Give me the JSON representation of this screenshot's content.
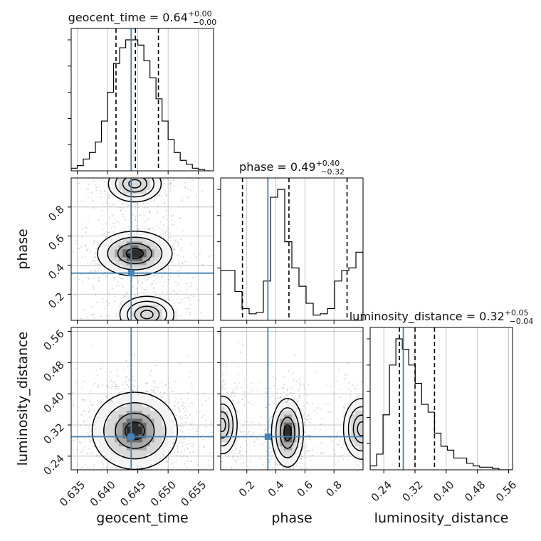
{
  "chart_data": {
    "type": "corner",
    "parameters": [
      "geocent_time",
      "phase",
      "luminosity_distance"
    ],
    "axis_labels": {
      "geocent_time": "geocent_time",
      "phase": "phase",
      "luminosity_distance": "luminosity_distance"
    },
    "ranges": {
      "geocent_time": [
        0.634,
        0.6575
      ],
      "phase": [
        0.02,
        1.0
      ],
      "luminosity_distance": [
        0.205,
        0.57
      ]
    },
    "ticks": {
      "geocent_time": [
        0.635,
        0.64,
        0.645,
        0.65,
        0.655
      ],
      "phase": [
        0.2,
        0.4,
        0.6,
        0.8
      ],
      "luminosity_distance": [
        0.24,
        0.32,
        0.4,
        0.48,
        0.56
      ]
    },
    "tick_labels": {
      "geocent_time": [
        "0.635",
        "0.640",
        "0.645",
        "0.650",
        "0.655"
      ],
      "phase": [
        "0.2",
        "0.4",
        "0.6",
        "0.8"
      ],
      "luminosity_distance": [
        "0.24",
        "0.32",
        "0.40",
        "0.48",
        "0.56"
      ]
    },
    "truths": {
      "geocent_time": 0.6439,
      "phase": 0.345,
      "luminosity_distance": 0.29
    },
    "truth_color": "#4682b4",
    "grid": true,
    "titles": {
      "geocent_time": {
        "name": "geocent_time",
        "value": "0.64",
        "plus": "+0.00",
        "minus": "−0.00"
      },
      "phase": {
        "name": "phase",
        "value": "0.49",
        "plus": "+0.40",
        "minus": "−0.32"
      },
      "luminosity_distance": {
        "name": "luminosity_distance",
        "value": "0.32",
        "plus": "+0.05",
        "minus": "−0.04"
      }
    },
    "quantiles": {
      "geocent_time": [
        0.6414,
        0.6446,
        0.6484
      ],
      "phase": [
        0.17,
        0.49,
        0.89
      ],
      "luminosity_distance": [
        0.28,
        0.32,
        0.37
      ]
    },
    "histograms": {
      "geocent_time": {
        "edges": [
          0.634,
          0.635,
          0.636,
          0.637,
          0.638,
          0.639,
          0.64,
          0.641,
          0.642,
          0.643,
          0.644,
          0.645,
          0.646,
          0.647,
          0.648,
          0.649,
          0.65,
          0.651,
          0.652,
          0.653,
          0.654,
          0.655,
          0.656,
          0.657
        ],
        "counts": [
          2,
          4,
          9,
          14,
          22,
          38,
          60,
          82,
          94,
          100,
          100,
          96,
          84,
          71,
          55,
          38,
          24,
          14,
          8,
          5,
          2,
          1,
          0
        ]
      },
      "phase": {
        "edges": [
          0.02,
          0.069,
          0.118,
          0.167,
          0.216,
          0.265,
          0.314,
          0.363,
          0.412,
          0.461,
          0.51,
          0.559,
          0.608,
          0.657,
          0.706,
          0.755,
          0.804,
          0.853,
          0.902,
          0.951,
          1.0
        ],
        "counts": [
          38,
          38,
          22,
          9,
          5,
          6,
          30,
          94,
          100,
          60,
          40,
          26,
          13,
          4,
          5,
          9,
          30,
          38,
          40,
          52
        ]
      },
      "luminosity_distance": {
        "edges": [
          0.205,
          0.2215,
          0.238,
          0.2545,
          0.271,
          0.2875,
          0.304,
          0.3205,
          0.337,
          0.3535,
          0.37,
          0.3865,
          0.403,
          0.4195,
          0.436,
          0.4525,
          0.469,
          0.4855,
          0.502,
          0.5185,
          0.535,
          0.5515,
          0.57
        ],
        "counts": [
          3,
          12,
          42,
          80,
          100,
          92,
          80,
          66,
          50,
          44,
          28,
          18,
          15,
          9,
          9,
          5,
          3,
          2,
          2,
          1,
          0,
          0
        ]
      }
    },
    "densities": [
      {
        "x": "geocent_time",
        "y": "phase",
        "components": [
          {
            "cx": 0.6445,
            "cy": 0.48,
            "sx": 0.0028,
            "sy": 0.07,
            "w": 1.0
          },
          {
            "cx": 0.6445,
            "cy": 0.96,
            "sx": 0.0028,
            "sy": 0.08,
            "w": 0.5
          },
          {
            "cx": 0.6465,
            "cy": 0.06,
            "sx": 0.0032,
            "sy": 0.09,
            "w": 0.4
          }
        ]
      },
      {
        "x": "geocent_time",
        "y": "luminosity_distance",
        "components": [
          {
            "cx": 0.6445,
            "cy": 0.305,
            "sx": 0.0032,
            "sy": 0.045,
            "w": 1.0
          }
        ]
      },
      {
        "x": "phase",
        "y": "luminosity_distance",
        "components": [
          {
            "cx": 0.48,
            "cy": 0.3,
            "sx": 0.05,
            "sy": 0.04,
            "w": 1.0
          },
          {
            "cx": 0.99,
            "cy": 0.31,
            "sx": 0.08,
            "sy": 0.05,
            "w": 0.5
          },
          {
            "cx": 0.03,
            "cy": 0.32,
            "sx": 0.07,
            "sy": 0.05,
            "w": 0.45
          }
        ]
      }
    ]
  }
}
